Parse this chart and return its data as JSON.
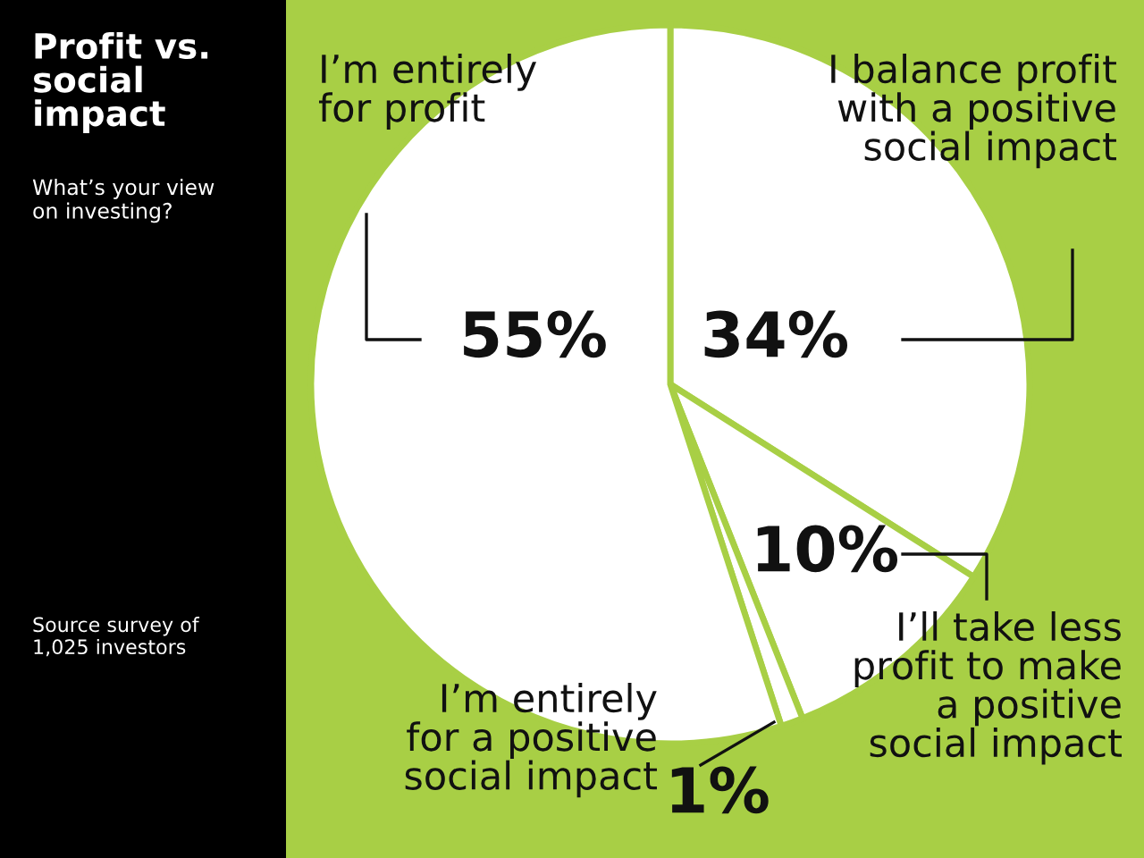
{
  "chart_data": {
    "type": "pie",
    "title": "Profit vs.\nsocial\nimpact",
    "subtitle": "What’s your view\non investing?",
    "categories": [
      "I balance profit\nwith a positive\nsocial impact",
      "I’ll take less\nprofit to make\na positive\nsocial impact",
      "I’m entirely\nfor a positive\nsocial impact",
      "I’m entirely\nfor profit"
    ],
    "values": [
      34,
      10,
      1,
      55
    ],
    "value_labels": [
      "34%",
      "10%",
      "1%",
      "55%"
    ],
    "colors": [
      "#ffffff",
      "#ffffff",
      "#ffffff",
      "#ffffff"
    ],
    "annotations": [
      "Source survey of\n1,025 investors"
    ],
    "legend": false
  }
}
